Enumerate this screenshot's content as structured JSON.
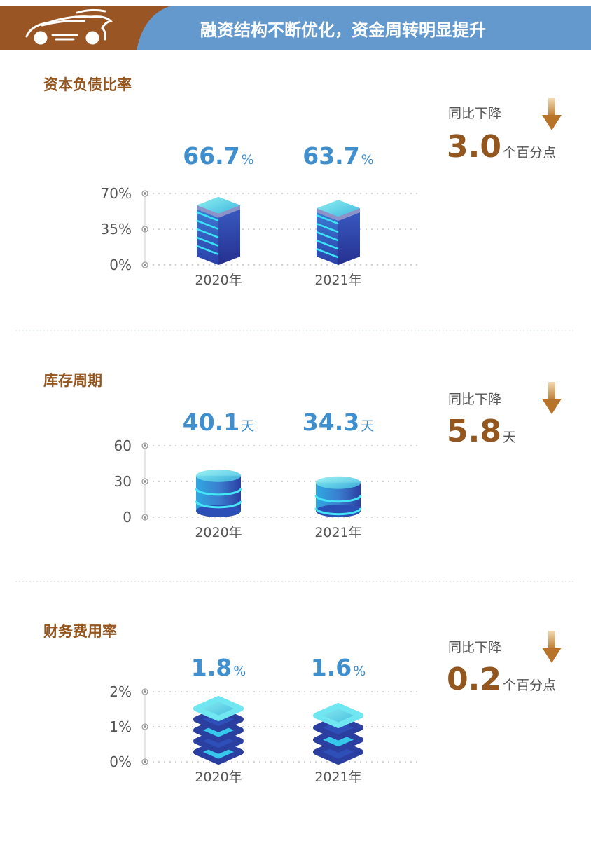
{
  "header": {
    "title": "融资结构不断优化，资金周转明显提升",
    "icon": "car-logo-icon",
    "colors": {
      "brand": "#9a5524",
      "band": "#6399cc"
    }
  },
  "colors": {
    "title": "#93561f",
    "value": "#3f8fcf",
    "change": "#93561f"
  },
  "sections": [
    {
      "title": "资本负债比率",
      "change_label": "同比下降",
      "change_value": "3.0",
      "change_unit": "个百分点"
    },
    {
      "title": "库存周期",
      "change_label": "同比下降",
      "change_value": "5.8",
      "change_unit": "天"
    },
    {
      "title": "财务费用率",
      "change_label": "同比下降",
      "change_value": "0.2",
      "change_unit": "个百分点"
    }
  ],
  "chart_data": [
    {
      "type": "bar",
      "categories": [
        "2020年",
        "2021年"
      ],
      "values": [
        66.7,
        63.7
      ],
      "value_labels": [
        "66.7",
        "63.7"
      ],
      "unit": "%",
      "ylim": [
        0,
        70
      ],
      "yticks": [
        "0%",
        "35%",
        "70%"
      ],
      "grid": true,
      "mark": "isometric-box"
    },
    {
      "type": "bar",
      "categories": [
        "2020年",
        "2021年"
      ],
      "values": [
        40.1,
        34.3
      ],
      "value_labels": [
        "40.1",
        "34.3"
      ],
      "unit": "天",
      "ylim": [
        0,
        60
      ],
      "yticks": [
        "0",
        "30",
        "60"
      ],
      "grid": true,
      "mark": "cylinder"
    },
    {
      "type": "bar",
      "categories": [
        "2020年",
        "2021年"
      ],
      "values": [
        1.8,
        1.6
      ],
      "value_labels": [
        "1.8",
        "1.6"
      ],
      "unit": "%",
      "ylim": [
        0,
        2
      ],
      "yticks": [
        "0%",
        "1%",
        "2%"
      ],
      "grid": true,
      "mark": "rounded-stack"
    }
  ]
}
